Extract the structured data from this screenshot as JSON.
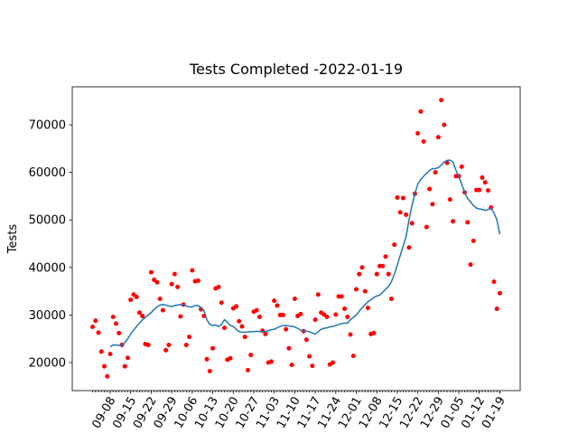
{
  "chart_data": {
    "type": "line",
    "title": "Tests Completed -2022-01-19",
    "y_label": "Tests",
    "x": [
      "09-02",
      "09-03",
      "09-04",
      "09-05",
      "09-06",
      "09-07",
      "09-08",
      "09-09",
      "09-10",
      "09-11",
      "09-12",
      "09-13",
      "09-14",
      "09-15",
      "09-16",
      "09-17",
      "09-18",
      "09-19",
      "09-20",
      "09-21",
      "09-22",
      "09-23",
      "09-24",
      "09-25",
      "09-26",
      "09-27",
      "09-28",
      "09-29",
      "09-30",
      "10-01",
      "10-02",
      "10-03",
      "10-04",
      "10-05",
      "10-06",
      "10-07",
      "10-08",
      "10-09",
      "10-10",
      "10-11",
      "10-12",
      "10-13",
      "10-14",
      "10-15",
      "10-16",
      "10-17",
      "10-18",
      "10-19",
      "10-20",
      "10-21",
      "10-22",
      "10-23",
      "10-24",
      "10-25",
      "10-26",
      "10-27",
      "10-28",
      "10-29",
      "10-30",
      "10-31",
      "11-01",
      "11-02",
      "11-03",
      "11-04",
      "11-05",
      "11-06",
      "11-07",
      "11-08",
      "11-09",
      "11-10",
      "11-11",
      "11-12",
      "11-13",
      "11-14",
      "11-15",
      "11-16",
      "11-17",
      "11-18",
      "11-19",
      "11-20",
      "11-21",
      "11-22",
      "11-23",
      "11-24",
      "11-25",
      "11-26",
      "11-27",
      "11-28",
      "11-29",
      "11-30",
      "12-01",
      "12-02",
      "12-03",
      "12-04",
      "12-05",
      "12-06",
      "12-07",
      "12-08",
      "12-09",
      "12-10",
      "12-11",
      "12-12",
      "12-13",
      "12-14",
      "12-15",
      "12-16",
      "12-17",
      "12-18",
      "12-19",
      "12-20",
      "12-21",
      "12-22",
      "12-23",
      "12-24",
      "12-25",
      "12-26",
      "12-27",
      "12-28",
      "12-29",
      "12-30",
      "12-31",
      "01-01",
      "01-02",
      "01-03",
      "01-04",
      "01-05",
      "01-06",
      "01-07",
      "01-08",
      "01-09",
      "01-10",
      "01-11",
      "01-12",
      "01-13",
      "01-14",
      "01-15",
      "01-16",
      "01-17",
      "01-18",
      "01-19"
    ],
    "series": [
      {
        "mode": "markers",
        "color": "#ff0000",
        "values": [
          27500,
          28800,
          26300,
          22300,
          19200,
          17100,
          21800,
          29600,
          28200,
          26200,
          23700,
          19200,
          21000,
          33200,
          34300,
          33800,
          30500,
          29800,
          23900,
          23700,
          39000,
          37400,
          36900,
          33400,
          31000,
          22600,
          23700,
          36500,
          38600,
          35900,
          29700,
          32200,
          23700,
          25400,
          39400,
          37100,
          37200,
          31200,
          29800,
          20700,
          18200,
          23000,
          35600,
          35900,
          32600,
          27300,
          20600,
          20900,
          31400,
          31800,
          28700,
          27600,
          25400,
          18400,
          21600,
          30700,
          31000,
          29600,
          26700,
          26000,
          20000,
          20200,
          33000,
          32000,
          30000,
          30000,
          27000,
          23000,
          19500,
          33400,
          29800,
          30200,
          26600,
          24800,
          21300,
          19300,
          29000,
          34300,
          30500,
          30100,
          29600,
          19600,
          20000,
          30100,
          33900,
          33900,
          31300,
          29600,
          25900,
          21400,
          35400,
          38600,
          40000,
          35000,
          31500,
          26000,
          26200,
          38600,
          40300,
          40300,
          42300,
          38600,
          33400,
          44800,
          54700,
          51600,
          54600,
          51100,
          44200,
          49300,
          55500,
          68200,
          72800,
          66500,
          48500,
          56500,
          53300,
          60000,
          67400,
          75200,
          70000,
          62000,
          54300,
          49700,
          59200,
          59200,
          61200,
          55800,
          49500,
          40600,
          45600,
          56300,
          56300,
          58900,
          57900,
          56200,
          52600,
          37000,
          31300,
          34600
        ]
      },
      {
        "mode": "lines",
        "color": "#1f77b4",
        "values": [
          null,
          null,
          null,
          null,
          null,
          null,
          23300,
          23700,
          23700,
          23600,
          23600,
          24200,
          25000,
          26000,
          26800,
          27600,
          28300,
          29000,
          29500,
          30000,
          30500,
          31200,
          31700,
          32100,
          32200,
          32100,
          31900,
          31800,
          32000,
          32100,
          32200,
          32200,
          31900,
          31700,
          31700,
          32000,
          32000,
          31500,
          31000,
          29000,
          28000,
          27800,
          27900,
          27600,
          28000,
          29000,
          28500,
          27800,
          27600,
          27000,
          26500,
          26400,
          26400,
          26400,
          26500,
          26500,
          26600,
          26500,
          26500,
          26500,
          26700,
          26900,
          27000,
          27300,
          27600,
          27800,
          27800,
          27700,
          27600,
          27500,
          27200,
          26800,
          26700,
          26600,
          26500,
          26200,
          26000,
          26500,
          27000,
          27200,
          27300,
          27500,
          27600,
          27800,
          28000,
          28200,
          28300,
          28300,
          29000,
          29500,
          30000,
          30800,
          31500,
          32200,
          32800,
          33200,
          33700,
          34000,
          34200,
          34800,
          35400,
          36000,
          37000,
          38600,
          40500,
          42500,
          44500,
          46500,
          50000,
          53000,
          55500,
          57500,
          58500,
          59200,
          59800,
          60400,
          60800,
          60800,
          61000,
          61500,
          62200,
          62500,
          62600,
          62200,
          60500,
          59000,
          57500,
          55800,
          54500,
          53800,
          53000,
          52500,
          52300,
          52200,
          52000,
          52200,
          52500,
          51500,
          50000,
          47000
        ]
      }
    ],
    "xticks": [
      "09-08",
      "09-15",
      "09-22",
      "09-29",
      "10-06",
      "10-13",
      "10-20",
      "10-27",
      "11-03",
      "11-10",
      "11-17",
      "11-24",
      "12-01",
      "12-08",
      "12-15",
      "12-22",
      "12-29",
      "01-05",
      "01-12",
      "01-19"
    ],
    "ylim": [
      14100,
      78000
    ],
    "yticks": [
      20000,
      30000,
      40000,
      50000,
      60000,
      70000
    ]
  }
}
